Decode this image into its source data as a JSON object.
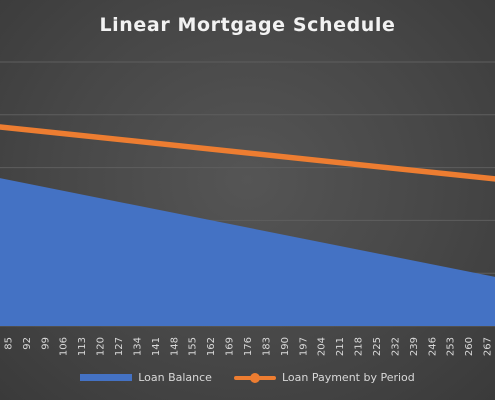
{
  "chart_data": {
    "type": "area",
    "title": "Linear Mortgage Schedule",
    "xlabel": "",
    "ylabel": "",
    "categories": [
      "85",
      "92",
      "99",
      "106",
      "113",
      "120",
      "127",
      "134",
      "141",
      "148",
      "155",
      "162",
      "169",
      "176",
      "183",
      "190",
      "197",
      "204",
      "211",
      "218",
      "225",
      "232",
      "239",
      "246",
      "253",
      "260",
      "267"
    ],
    "x_range": [
      82,
      270
    ],
    "ylim": [
      0,
      1
    ],
    "y_axis_labels_visible": false,
    "grid": true,
    "legend_position": "bottom",
    "series": [
      {
        "name": "Loan Balance",
        "kind": "area",
        "color": "#4472C4",
        "x": [
          82,
          270
        ],
        "values": [
          0.56,
          0.186
        ]
      },
      {
        "name": "Loan Payment by Period",
        "kind": "line",
        "color": "#ED7D31",
        "marker": "circle",
        "x": [
          82,
          270
        ],
        "values": [
          0.754,
          0.557
        ]
      }
    ]
  }
}
